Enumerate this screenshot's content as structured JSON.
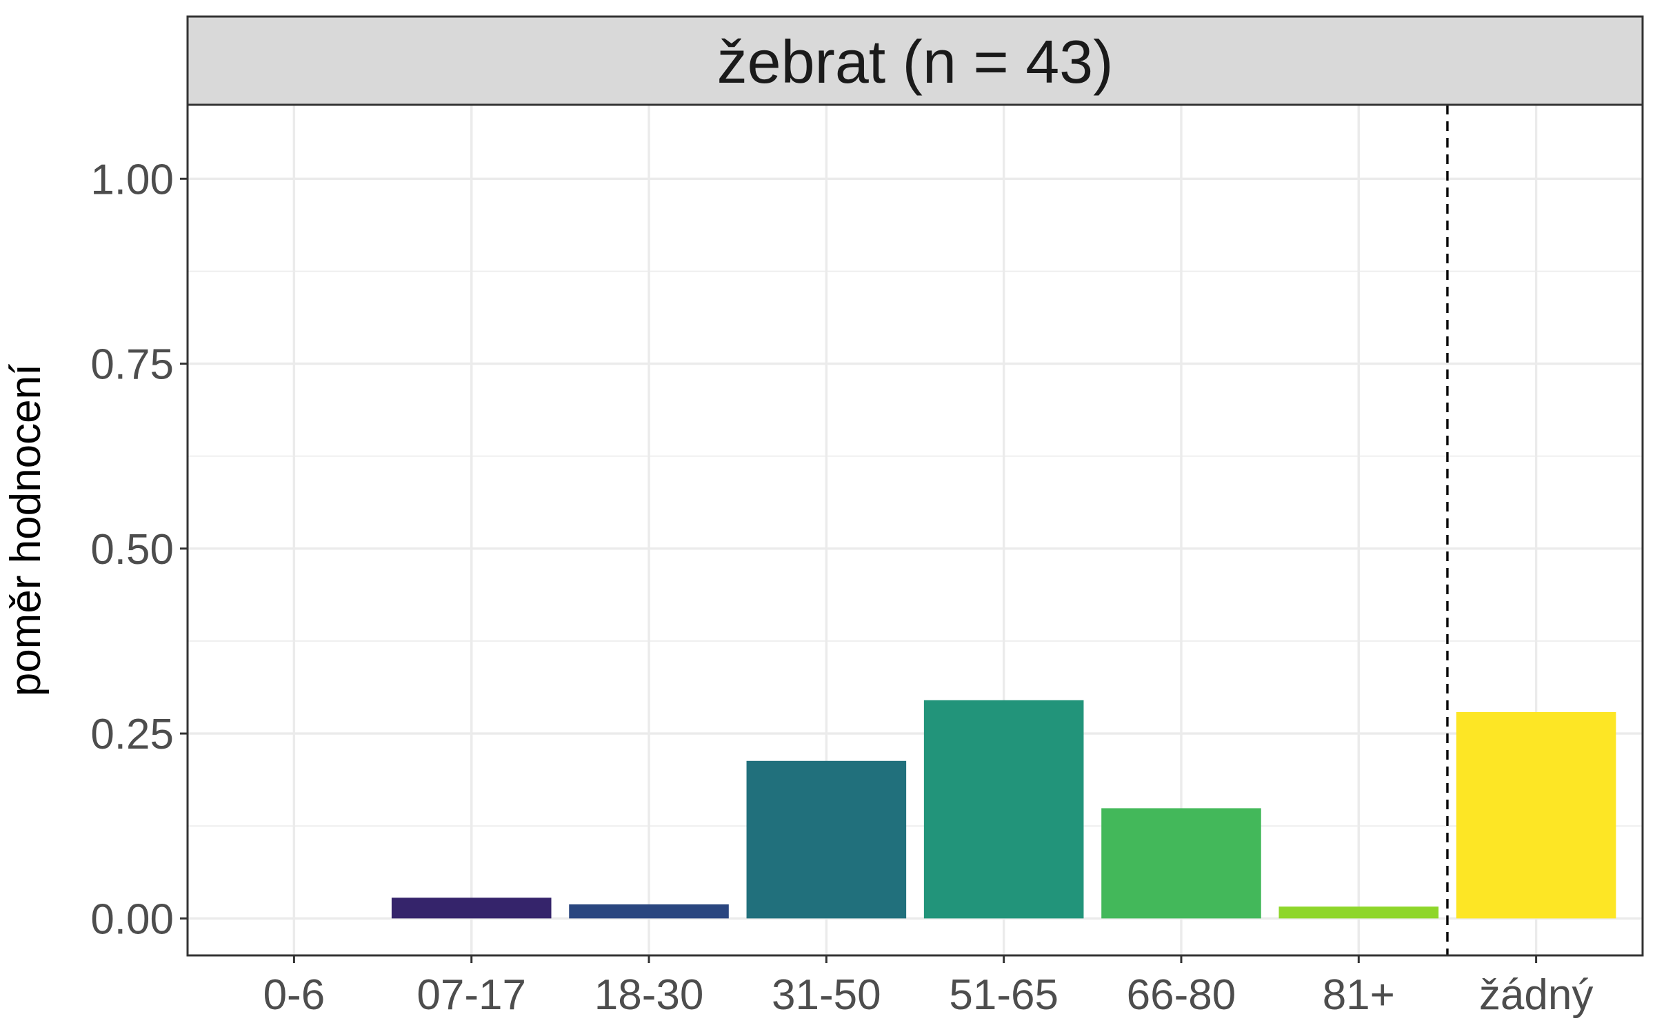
{
  "chart_data": {
    "type": "bar",
    "title": "žebrat (n = 43)",
    "xlabel": "",
    "ylabel": "poměr hodnocení",
    "categories": [
      "0-6",
      "07-17",
      "18-30",
      "31-50",
      "51-65",
      "66-80",
      "81+",
      "žádný"
    ],
    "values": [
      0,
      0.028,
      0.019,
      0.213,
      0.295,
      0.149,
      0.016,
      0.279
    ],
    "colors": [
      "#440154",
      "#35246B",
      "#2A467F",
      "#21707C",
      "#22947A",
      "#43B85A",
      "#8ED62A",
      "#FDE625"
    ],
    "ylim": [
      -0.05,
      1.1
    ],
    "yticks": [
      0,
      0.25,
      0.5,
      0.75,
      1.0
    ],
    "ytick_labels": [
      "0.00",
      "0.25",
      "0.50",
      "0.75",
      "1.00"
    ],
    "vline_after_category": "81+",
    "vline_style": "dashed",
    "grid": true,
    "legend": "none"
  }
}
